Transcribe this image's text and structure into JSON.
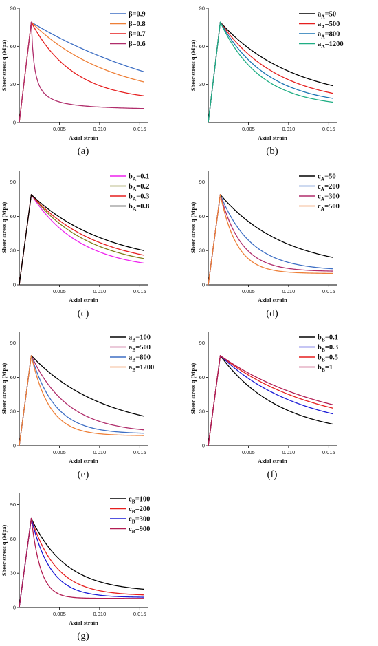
{
  "figure": {
    "colors": {
      "blue": "#3e6fc4",
      "orange": "#ee7f37",
      "red": "#e61f1f",
      "purple": "#b02d6b",
      "magenta": "#ee22ee",
      "olive": "#7f7f1a",
      "black": "#000000",
      "green": "#1fae84",
      "teal": "#1c75b3",
      "darkblue": "#1b1bd6",
      "crimson": "#b21d52"
    }
  },
  "chart_data": [
    {
      "panel": "a",
      "caption": "(a)",
      "type": "line",
      "xlabel": "Axial strain",
      "ylabel": "Sheer stress q (Mpa)",
      "xlim": [
        0,
        0.016
      ],
      "ylim": [
        0,
        90
      ],
      "xticks": [
        "0.005",
        "0.010",
        "0.015"
      ],
      "xtick_values": [
        0.005,
        0.01,
        0.015
      ],
      "yticks": [
        "0",
        "30",
        "60",
        "90"
      ],
      "ytick_values": [
        0,
        30,
        60,
        90
      ],
      "grid": false,
      "legend": "top-right",
      "peak": {
        "x": 0.0015,
        "y": 79
      },
      "series": [
        {
          "name": "β=0.9",
          "sym": "β",
          "sub": "",
          "val": "=0.9",
          "color": "#3e6fc4",
          "decay": "exp",
          "k": 48,
          "end": 40
        },
        {
          "name": "β=0.8",
          "sym": "β",
          "sub": "",
          "val": "=0.8",
          "color": "#ee7f37",
          "decay": "exp",
          "k": 100,
          "end": 32
        },
        {
          "name": "β=0.7",
          "sym": "β",
          "sub": "",
          "val": "=0.7",
          "color": "#e61f1f",
          "decay": "exp",
          "k": 190,
          "end": 21
        },
        {
          "name": "β=0.6",
          "sym": "β",
          "sub": "",
          "val": "=0.6",
          "color": "#b02d6b",
          "decay": "hyp",
          "k": 2500,
          "end": 11
        }
      ]
    },
    {
      "panel": "b",
      "caption": "(b)",
      "type": "line",
      "xlabel": "Axial strain",
      "ylabel": "Sheer stress q (Mpa)",
      "xlim": [
        0,
        0.016
      ],
      "ylim": [
        0,
        90
      ],
      "xticks": [
        "0.005",
        "0.010",
        "0.015"
      ],
      "xtick_values": [
        0.005,
        0.01,
        0.015
      ],
      "yticks": [
        "30",
        "60",
        "90"
      ],
      "ytick_values": [
        30,
        60,
        90
      ],
      "grid": false,
      "legend": "top-right",
      "peak": {
        "x": 0.0015,
        "y": 79
      },
      "series": [
        {
          "name": "aA=50",
          "sym": "a",
          "sub": "A",
          "val": "=50",
          "color": "#000000",
          "decay": "exp",
          "k": 110,
          "end": 29
        },
        {
          "name": "aA=500",
          "sym": "a",
          "sub": "A",
          "val": "=500",
          "color": "#e61f1f",
          "decay": "exp",
          "k": 140,
          "end": 23
        },
        {
          "name": "aA=800",
          "sym": "a",
          "sub": "A",
          "val": "=800",
          "color": "#1c75b3",
          "decay": "exp",
          "k": 170,
          "end": 19
        },
        {
          "name": "aA=1200",
          "sym": "a",
          "sub": "A",
          "val": "=1200",
          "color": "#1fae84",
          "decay": "exp",
          "k": 200,
          "end": 16
        }
      ]
    },
    {
      "panel": "c",
      "caption": "(c)",
      "type": "line",
      "xlabel": "Axial strain",
      "ylabel": "Sheer stress q (Mpa)",
      "xlim": [
        0,
        0.016
      ],
      "ylim": [
        0,
        100
      ],
      "xticks": [
        "0.005",
        "0.010",
        "0.015"
      ],
      "xtick_values": [
        0.005,
        0.01,
        0.015
      ],
      "yticks": [
        "0",
        "30",
        "60",
        "90"
      ],
      "ytick_values": [
        0,
        30,
        60,
        90
      ],
      "grid": false,
      "legend": "top-right",
      "peak": {
        "x": 0.0015,
        "y": 79
      },
      "series": [
        {
          "name": "bA=0.1",
          "sym": "b",
          "sub": "A",
          "val": "=0.1",
          "color": "#ee22ee",
          "decay": "exp",
          "k": 165,
          "end": 19
        },
        {
          "name": "bA=0.2",
          "sym": "b",
          "sub": "A",
          "val": "=0.2",
          "color": "#7f7f1a",
          "decay": "exp",
          "k": 140,
          "end": 23
        },
        {
          "name": "bA=0.3",
          "sym": "b",
          "sub": "A",
          "val": "=0.3",
          "color": "#e61f1f",
          "decay": "exp",
          "k": 125,
          "end": 26
        },
        {
          "name": "bA=0.8",
          "sym": "b",
          "sub": "A",
          "val": "=0.8",
          "color": "#000000",
          "decay": "exp",
          "k": 105,
          "end": 30
        }
      ]
    },
    {
      "panel": "d",
      "caption": "(d)",
      "type": "line",
      "xlabel": "Axial strain",
      "ylabel": "Sheer stress q (Mpa)",
      "xlim": [
        0,
        0.016
      ],
      "ylim": [
        0,
        100
      ],
      "xticks": [
        "0.005",
        "0.010",
        "0.015"
      ],
      "xtick_values": [
        0.005,
        0.01,
        0.015
      ],
      "yticks": [
        "0",
        "30",
        "60",
        "90"
      ],
      "ytick_values": [
        0,
        30,
        60,
        90
      ],
      "grid": false,
      "legend": "top-right",
      "peak": {
        "x": 0.0015,
        "y": 79
      },
      "series": [
        {
          "name": "cA=50",
          "sym": "c",
          "sub": "A",
          "val": "=50",
          "color": "#000000",
          "decay": "exp",
          "k": 125,
          "end": 24
        },
        {
          "name": "cA=200",
          "sym": "c",
          "sub": "A",
          "val": "=200",
          "color": "#3e6fc4",
          "decay": "exp",
          "k": 260,
          "end": 14
        },
        {
          "name": "cA=300",
          "sym": "c",
          "sub": "A",
          "val": "=300",
          "color": "#b02d6b",
          "decay": "exp",
          "k": 380,
          "end": 12
        },
        {
          "name": "cA=500",
          "sym": "c",
          "sub": "A",
          "val": "=500",
          "color": "#ee7f37",
          "decay": "exp",
          "k": 480,
          "end": 10
        }
      ]
    },
    {
      "panel": "e",
      "caption": "(e)",
      "type": "line",
      "xlabel": "Axial strain",
      "ylabel": "Sheer stress q (Mpa)",
      "xlim": [
        0,
        0.016
      ],
      "ylim": [
        0,
        100
      ],
      "xticks": [
        "0.005",
        "0.010",
        "0.015"
      ],
      "xtick_values": [
        0.005,
        0.01,
        0.015
      ],
      "yticks": [
        "0",
        "30",
        "60",
        "90"
      ],
      "ytick_values": [
        0,
        30,
        60,
        90
      ],
      "grid": false,
      "legend": "top-right",
      "peak": {
        "x": 0.0015,
        "y": 79
      },
      "series": [
        {
          "name": "aB=100",
          "sym": "a",
          "sub": "B",
          "val": "=100",
          "color": "#000000",
          "decay": "exp",
          "k": 110,
          "end": 26
        },
        {
          "name": "aB=500",
          "sym": "a",
          "sub": "B",
          "val": "=500",
          "color": "#b02d6b",
          "decay": "exp",
          "k": 220,
          "end": 14
        },
        {
          "name": "aB=800",
          "sym": "a",
          "sub": "B",
          "val": "=800",
          "color": "#3e6fc4",
          "decay": "exp",
          "k": 340,
          "end": 11
        },
        {
          "name": "aB=1200",
          "sym": "a",
          "sub": "B",
          "val": "=1200",
          "color": "#ee7f37",
          "decay": "exp",
          "k": 440,
          "end": 9
        }
      ]
    },
    {
      "panel": "f",
      "caption": "(f)",
      "type": "line",
      "xlabel": "Axial strain",
      "ylabel": "Sheer stress q (Mpa)",
      "xlim": [
        0,
        0.016
      ],
      "ylim": [
        0,
        100
      ],
      "xticks": [
        "0.005",
        "0.010",
        "0.015"
      ],
      "xtick_values": [
        0.005,
        0.01,
        0.015
      ],
      "yticks": [
        "0",
        "30",
        "60",
        "90"
      ],
      "ytick_values": [
        0,
        30,
        60,
        90
      ],
      "grid": false,
      "legend": "top-right",
      "peak": {
        "x": 0.0015,
        "y": 79
      },
      "series": [
        {
          "name": "bB=0.1",
          "sym": "b",
          "sub": "B",
          "val": "=0.1",
          "color": "#000000",
          "decay": "exp",
          "k": 135,
          "end": 19
        },
        {
          "name": "bB=0.3",
          "sym": "b",
          "sub": "B",
          "val": "=0.3",
          "color": "#1b1bd6",
          "decay": "exp",
          "k": 100,
          "end": 28
        },
        {
          "name": "bB=0.5",
          "sym": "b",
          "sub": "B",
          "val": "=0.5",
          "color": "#e61f1f",
          "decay": "exp",
          "k": 85,
          "end": 33
        },
        {
          "name": "bB=1",
          "sym": "b",
          "sub": "B",
          "val": "=1",
          "color": "#b21d52",
          "decay": "exp",
          "k": 75,
          "end": 36
        }
      ]
    },
    {
      "panel": "g",
      "caption": "(g)",
      "type": "line",
      "xlabel": "Axial strain",
      "ylabel": "Sheer stress q (Mpa)",
      "xlim": [
        0,
        0.016
      ],
      "ylim": [
        0,
        100
      ],
      "xticks": [
        "0.005",
        "0.010",
        "0.015"
      ],
      "xtick_values": [
        0.005,
        0.01,
        0.015
      ],
      "yticks": [
        "0",
        "30",
        "60",
        "90"
      ],
      "ytick_values": [
        0,
        30,
        60,
        90
      ],
      "grid": false,
      "legend": "top-right",
      "peak": {
        "x": 0.0015,
        "y": 78
      },
      "series": [
        {
          "name": "cB=100",
          "sym": "c",
          "sub": "B",
          "val": "=100",
          "color": "#000000",
          "decay": "exp",
          "k": 230,
          "end": 16
        },
        {
          "name": "cB=200",
          "sym": "c",
          "sub": "B",
          "val": "=200",
          "color": "#e61f1f",
          "decay": "exp",
          "k": 320,
          "end": 11
        },
        {
          "name": "cB=300",
          "sym": "c",
          "sub": "B",
          "val": "=300",
          "color": "#1b1bd6",
          "decay": "exp",
          "k": 420,
          "end": 9
        },
        {
          "name": "cB=900",
          "sym": "c",
          "sub": "B",
          "val": "=900",
          "color": "#b21d52",
          "decay": "exp",
          "k": 850,
          "end": 8
        }
      ]
    }
  ]
}
